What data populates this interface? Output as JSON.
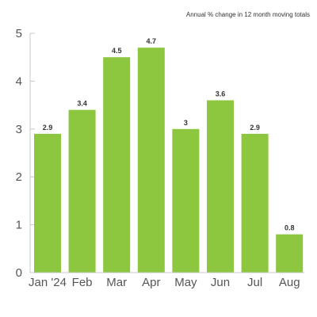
{
  "chart_data": {
    "type": "bar",
    "subtitle": "Annual % change in 12 month moving totals",
    "categories": [
      "Jan '24",
      "Feb",
      "Mar",
      "Apr",
      "May",
      "Jun",
      "Jul",
      "Aug"
    ],
    "values": [
      2.9,
      3.4,
      4.5,
      4.7,
      3,
      3.6,
      2.9,
      0.8
    ],
    "value_labels": [
      "2.9",
      "3.4",
      "4.5",
      "4.7",
      "3",
      "3.6",
      "2.9",
      "0.8"
    ],
    "yticks": [
      "0",
      "1",
      "2",
      "3",
      "4",
      "5"
    ],
    "ylim": [
      0,
      5
    ],
    "grid": false,
    "legend": "none",
    "bar_color": "#8dc63f"
  }
}
